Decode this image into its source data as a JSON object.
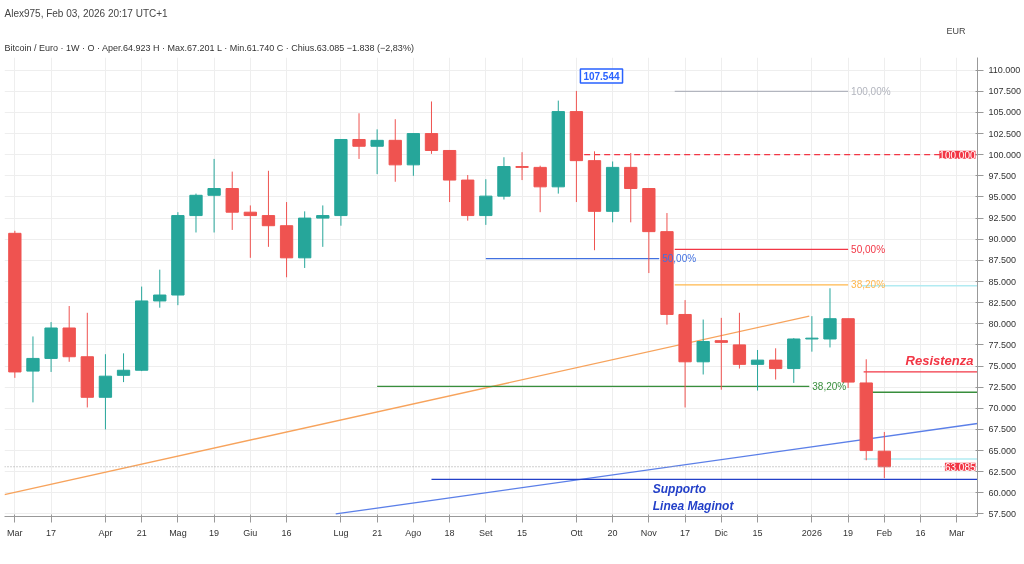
{
  "chart_data": {
    "type": "candlestick",
    "title": "Alex975, Feb 03, 2026 20:17 UTC+1",
    "subtitle": "Bitcoin / Euro · 1W · O · Aper.64.923  H · Max.67.201  L · Min.61.740  C · Chius.63.085  −1.838 (−2,83%)",
    "ylabel": "EUR",
    "x": [
      "2025-03-03",
      "2025-03-10",
      "2025-03-17",
      "2025-03-24",
      "2025-03-31",
      "2025-04-07",
      "2025-04-14",
      "2025-04-21",
      "2025-04-28",
      "2025-05-05",
      "2025-05-12",
      "2025-05-19",
      "2025-05-26",
      "2025-06-02",
      "2025-06-09",
      "2025-06-16",
      "2025-06-23",
      "2025-06-30",
      "2025-07-07",
      "2025-07-14",
      "2025-07-21",
      "2025-07-28",
      "2025-08-04",
      "2025-08-11",
      "2025-08-18",
      "2025-08-25",
      "2025-09-01",
      "2025-09-08",
      "2025-09-15",
      "2025-09-22",
      "2025-09-29",
      "2025-10-06",
      "2025-10-13",
      "2025-10-20",
      "2025-10-27",
      "2025-11-03",
      "2025-11-10",
      "2025-11-17",
      "2025-11-24",
      "2025-12-01",
      "2025-12-08",
      "2025-12-15",
      "2025-12-22",
      "2025-12-29",
      "2026-01-05",
      "2026-01-12",
      "2026-01-19",
      "2026-01-26",
      "2026-02-02"
    ],
    "ohlc": [
      [
        90700,
        91000,
        73600,
        74300
      ],
      [
        74400,
        78500,
        70700,
        75900
      ],
      [
        75900,
        80200,
        74300,
        79500
      ],
      [
        79500,
        82100,
        75500,
        76100
      ],
      [
        76100,
        81300,
        70100,
        71300
      ],
      [
        71300,
        76400,
        67500,
        73800
      ],
      [
        73900,
        76500,
        73100,
        74500
      ],
      [
        74500,
        84400,
        74400,
        82700
      ],
      [
        82700,
        86400,
        81900,
        83400
      ],
      [
        83400,
        93200,
        82200,
        92800
      ],
      [
        92800,
        95400,
        90800,
        95200
      ],
      [
        95200,
        99500,
        90800,
        96000
      ],
      [
        96000,
        98000,
        91100,
        93200
      ],
      [
        93200,
        94000,
        87800,
        92800
      ],
      [
        92800,
        98100,
        89100,
        91600
      ],
      [
        91600,
        94400,
        85500,
        87800
      ],
      [
        87800,
        93300,
        86600,
        92500
      ],
      [
        92500,
        94000,
        89100,
        92800
      ],
      [
        92800,
        101800,
        91600,
        101800
      ],
      [
        101800,
        104900,
        99500,
        101000
      ],
      [
        101000,
        103000,
        97700,
        101700
      ],
      [
        101700,
        104200,
        96800,
        98800
      ],
      [
        98800,
        102500,
        97500,
        102500
      ],
      [
        102500,
        106300,
        100100,
        100500
      ],
      [
        100500,
        100500,
        94400,
        97000
      ],
      [
        97000,
        97600,
        92200,
        92800
      ],
      [
        92800,
        97100,
        91700,
        95100
      ],
      [
        95100,
        99700,
        94700,
        98600
      ],
      [
        98600,
        100300,
        97000,
        98500
      ],
      [
        98500,
        98700,
        93200,
        96200
      ],
      [
        96200,
        106400,
        95400,
        105100
      ],
      [
        105100,
        107544,
        94400,
        99300
      ],
      [
        99300,
        100400,
        88700,
        93300
      ],
      [
        93300,
        99200,
        92000,
        98500
      ],
      [
        98500,
        100200,
        92000,
        96000
      ],
      [
        96000,
        96000,
        86000,
        90900
      ],
      [
        90900,
        93100,
        79900,
        81100
      ],
      [
        81100,
        82800,
        70100,
        75500
      ],
      [
        75500,
        80500,
        74000,
        77900
      ],
      [
        78000,
        80700,
        72200,
        77800
      ],
      [
        77500,
        81300,
        74700,
        75200
      ],
      [
        75200,
        76900,
        72100,
        75700
      ],
      [
        75700,
        77100,
        73400,
        74700
      ],
      [
        74700,
        78300,
        73000,
        78200
      ],
      [
        78200,
        80900,
        76700,
        78300
      ],
      [
        78200,
        84200,
        77200,
        80600
      ],
      [
        80600,
        80600,
        72400,
        73100
      ],
      [
        73000,
        75800,
        63850,
        65000
      ],
      [
        64923,
        67201,
        61740,
        63085
      ]
    ],
    "colors": [
      "#ef5350",
      "#26a69a",
      "#26a69a",
      "#ef5350",
      "#ef5350",
      "#26a69a",
      "#26a69a",
      "#26a69a",
      "#26a69a",
      "#26a69a",
      "#26a69a",
      "#26a69a",
      "#ef5350",
      "#ef5350",
      "#ef5350",
      "#ef5350",
      "#26a69a",
      "#26a69a",
      "#26a69a",
      "#ef5350",
      "#26a69a",
      "#ef5350",
      "#26a69a",
      "#ef5350",
      "#ef5350",
      "#ef5350",
      "#26a69a",
      "#26a69a",
      "#ef5350",
      "#ef5350",
      "#26a69a",
      "#ef5350",
      "#ef5350",
      "#26a69a",
      "#ef5350",
      "#ef5350",
      "#ef5350",
      "#ef5350",
      "#26a69a",
      "#ef5350",
      "#ef5350",
      "#26a69a",
      "#ef5350",
      "#26a69a",
      "#26a69a",
      "#26a69a",
      "#ef5350",
      "#ef5350",
      "#ef5350"
    ],
    "series": [
      {
        "type": "line",
        "color": "#f7a35c",
        "x": [
          "2025-02-27",
          "2026-01-04"
        ],
        "values": [
          59800,
          80900
        ]
      },
      {
        "type": "line",
        "color": "#5b7fe8",
        "x": [
          "2025-07-05",
          "2026-03-10"
        ],
        "values": [
          57500,
          68200
        ]
      },
      {
        "type": "line",
        "color": "#f23645",
        "line_style": "dashed",
        "x": [
          "2025-10-09",
          "2026-03-10"
        ],
        "values": [
          100000,
          100000
        ]
      },
      {
        "type": "line",
        "name": "100,00%",
        "color": "#b2b5be",
        "x": [
          "2025-11-13",
          "2026-01-19"
        ],
        "values": [
          107500,
          107500
        ]
      },
      {
        "type": "line",
        "name": "50,00%",
        "color": "#f23645",
        "x": [
          "2025-11-13",
          "2026-01-19"
        ],
        "values": [
          88800,
          88800
        ]
      },
      {
        "type": "line",
        "name": "38,20%",
        "color": "#ffb74d",
        "x": [
          "2025-11-13",
          "2026-01-19"
        ],
        "values": [
          84600,
          84600
        ]
      },
      {
        "type": "line",
        "name": "50,00%",
        "color": "#4170e0",
        "x": [
          "2025-09-01",
          "2025-11-07"
        ],
        "values": [
          87700,
          87700
        ]
      },
      {
        "type": "line",
        "name": "38,20%",
        "color": "#388e3c",
        "x": [
          "2025-07-21",
          "2026-01-04"
        ],
        "values": [
          72600,
          72600
        ]
      },
      {
        "type": "line",
        "color": "#b2ebf2",
        "x": [
          "2026-01-24",
          "2026-03-10"
        ],
        "values": [
          84500,
          84500
        ]
      },
      {
        "type": "line",
        "name": "Resistenza",
        "color": "#f23645",
        "x": [
          "2026-01-25",
          "2026-03-10"
        ],
        "values": [
          74300,
          74300
        ]
      },
      {
        "type": "line",
        "color": "#388e3c",
        "x": [
          "2026-01-28",
          "2026-03-10"
        ],
        "values": [
          71900,
          71900
        ]
      },
      {
        "type": "line",
        "color": "#b2ebf2",
        "x": [
          "2026-01-25",
          "2026-03-10"
        ],
        "values": [
          64000,
          64000
        ]
      },
      {
        "type": "line",
        "name": "Supporto\nLinea Maginot",
        "color": "#2340c8",
        "x": [
          "2025-08-11",
          "2026-03-10"
        ],
        "values": [
          61600,
          61600
        ]
      }
    ],
    "ref_lines": [
      {
        "axis": "y",
        "value": 63085,
        "label": "63.085",
        "color": "#9e9e9e",
        "line_style": "dotted"
      }
    ],
    "annotations": [
      {
        "text": "107.544",
        "x": "2025-10-06",
        "y": 107544
      },
      {
        "text": "100.000",
        "y": 100000
      }
    ],
    "xlim": [
      "2025-02-27",
      "2026-03-10"
    ],
    "ylim": [
      57200,
      111500
    ],
    "xticks": [
      {
        "value": "2025-03-03",
        "label": "Mar"
      },
      {
        "value": "2025-03-17",
        "label": "17"
      },
      {
        "value": "2025-04-07",
        "label": "Apr"
      },
      {
        "value": "2025-04-21",
        "label": "21"
      },
      {
        "value": "2025-05-05",
        "label": "Mag"
      },
      {
        "value": "2025-05-19",
        "label": "19"
      },
      {
        "value": "2025-06-02",
        "label": "Giu"
      },
      {
        "value": "2025-06-16",
        "label": "16"
      },
      {
        "value": "2025-07-07",
        "label": "Lug"
      },
      {
        "value": "2025-07-21",
        "label": "21"
      },
      {
        "value": "2025-08-04",
        "label": "Ago"
      },
      {
        "value": "2025-08-18",
        "label": "18"
      },
      {
        "value": "2025-09-01",
        "label": "Set"
      },
      {
        "value": "2025-09-15",
        "label": "15"
      },
      {
        "value": "2025-10-06",
        "label": "Ott"
      },
      {
        "value": "2025-10-20",
        "label": "20"
      },
      {
        "value": "2025-11-03",
        "label": "Nov"
      },
      {
        "value": "2025-11-17",
        "label": "17"
      },
      {
        "value": "2025-12-01",
        "label": "Dic"
      },
      {
        "value": "2025-12-15",
        "label": "15"
      },
      {
        "value": "2026-01-05",
        "label": "2026"
      },
      {
        "value": "2026-01-19",
        "label": "19"
      },
      {
        "value": "2026-02-02",
        "label": "Feb"
      },
      {
        "value": "2026-02-16",
        "label": "16"
      },
      {
        "value": "2026-03-02",
        "label": "Mar"
      }
    ],
    "yticks": [
      {
        "value": 57500,
        "label": "57.500"
      },
      {
        "value": 60000,
        "label": "60.000"
      },
      {
        "value": 62500,
        "label": "62.500"
      },
      {
        "value": 65000,
        "label": "65.000"
      },
      {
        "value": 67500,
        "label": "67.500"
      },
      {
        "value": 70000,
        "label": "70.000"
      },
      {
        "value": 72500,
        "label": "72.500"
      },
      {
        "value": 75000,
        "label": "75.000"
      },
      {
        "value": 77500,
        "label": "77.500"
      },
      {
        "value": 80000,
        "label": "80.000"
      },
      {
        "value": 82500,
        "label": "82.500"
      },
      {
        "value": 85000,
        "label": "85.000"
      },
      {
        "value": 87500,
        "label": "87.500"
      },
      {
        "value": 90000,
        "label": "90.000"
      },
      {
        "value": 92500,
        "label": "92.500"
      },
      {
        "value": 95000,
        "label": "95.000"
      },
      {
        "value": 97500,
        "label": "97.500"
      },
      {
        "value": 100000,
        "label": "100.000"
      },
      {
        "value": 102500,
        "label": "102.500"
      },
      {
        "value": 105000,
        "label": "105.000"
      },
      {
        "value": 107500,
        "label": "107.500"
      },
      {
        "value": 110000,
        "label": "110.000"
      }
    ],
    "grid": true
  }
}
